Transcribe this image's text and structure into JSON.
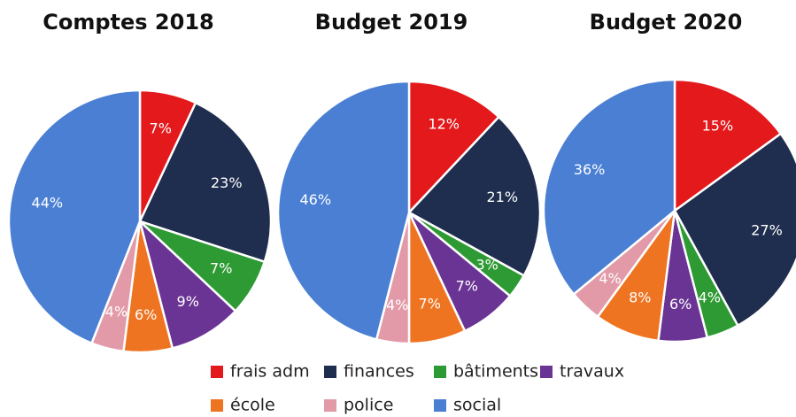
{
  "legend": {
    "categories": [
      "frais adm",
      "finances",
      "bâtiments",
      "travaux",
      "école",
      "police",
      "social"
    ],
    "colors": [
      "#e3191c",
      "#1f2d4e",
      "#2e9a34",
      "#6a3494",
      "#ee7422",
      "#e29aa8",
      "#4a7fd4"
    ]
  },
  "chart_data": [
    {
      "type": "pie",
      "title": "Comptes 2018",
      "values": [
        7,
        23,
        7,
        9,
        6,
        4,
        44
      ],
      "value_labels": [
        "7%",
        "23%",
        "7%",
        "9%",
        "6%",
        "4%",
        "44%"
      ]
    },
    {
      "type": "pie",
      "title": "Budget 2019",
      "values": [
        12,
        21,
        3,
        7,
        7,
        4,
        46
      ],
      "value_labels": [
        "12%",
        "21%",
        "3%",
        "7%",
        "7%",
        "4%",
        "46%"
      ]
    },
    {
      "type": "pie",
      "title": "Budget 2020",
      "values": [
        15,
        27,
        4,
        6,
        8,
        4,
        36
      ],
      "value_labels": [
        "15%",
        "27%",
        "4%",
        "6%",
        "8%",
        "4%",
        "36%"
      ]
    }
  ]
}
